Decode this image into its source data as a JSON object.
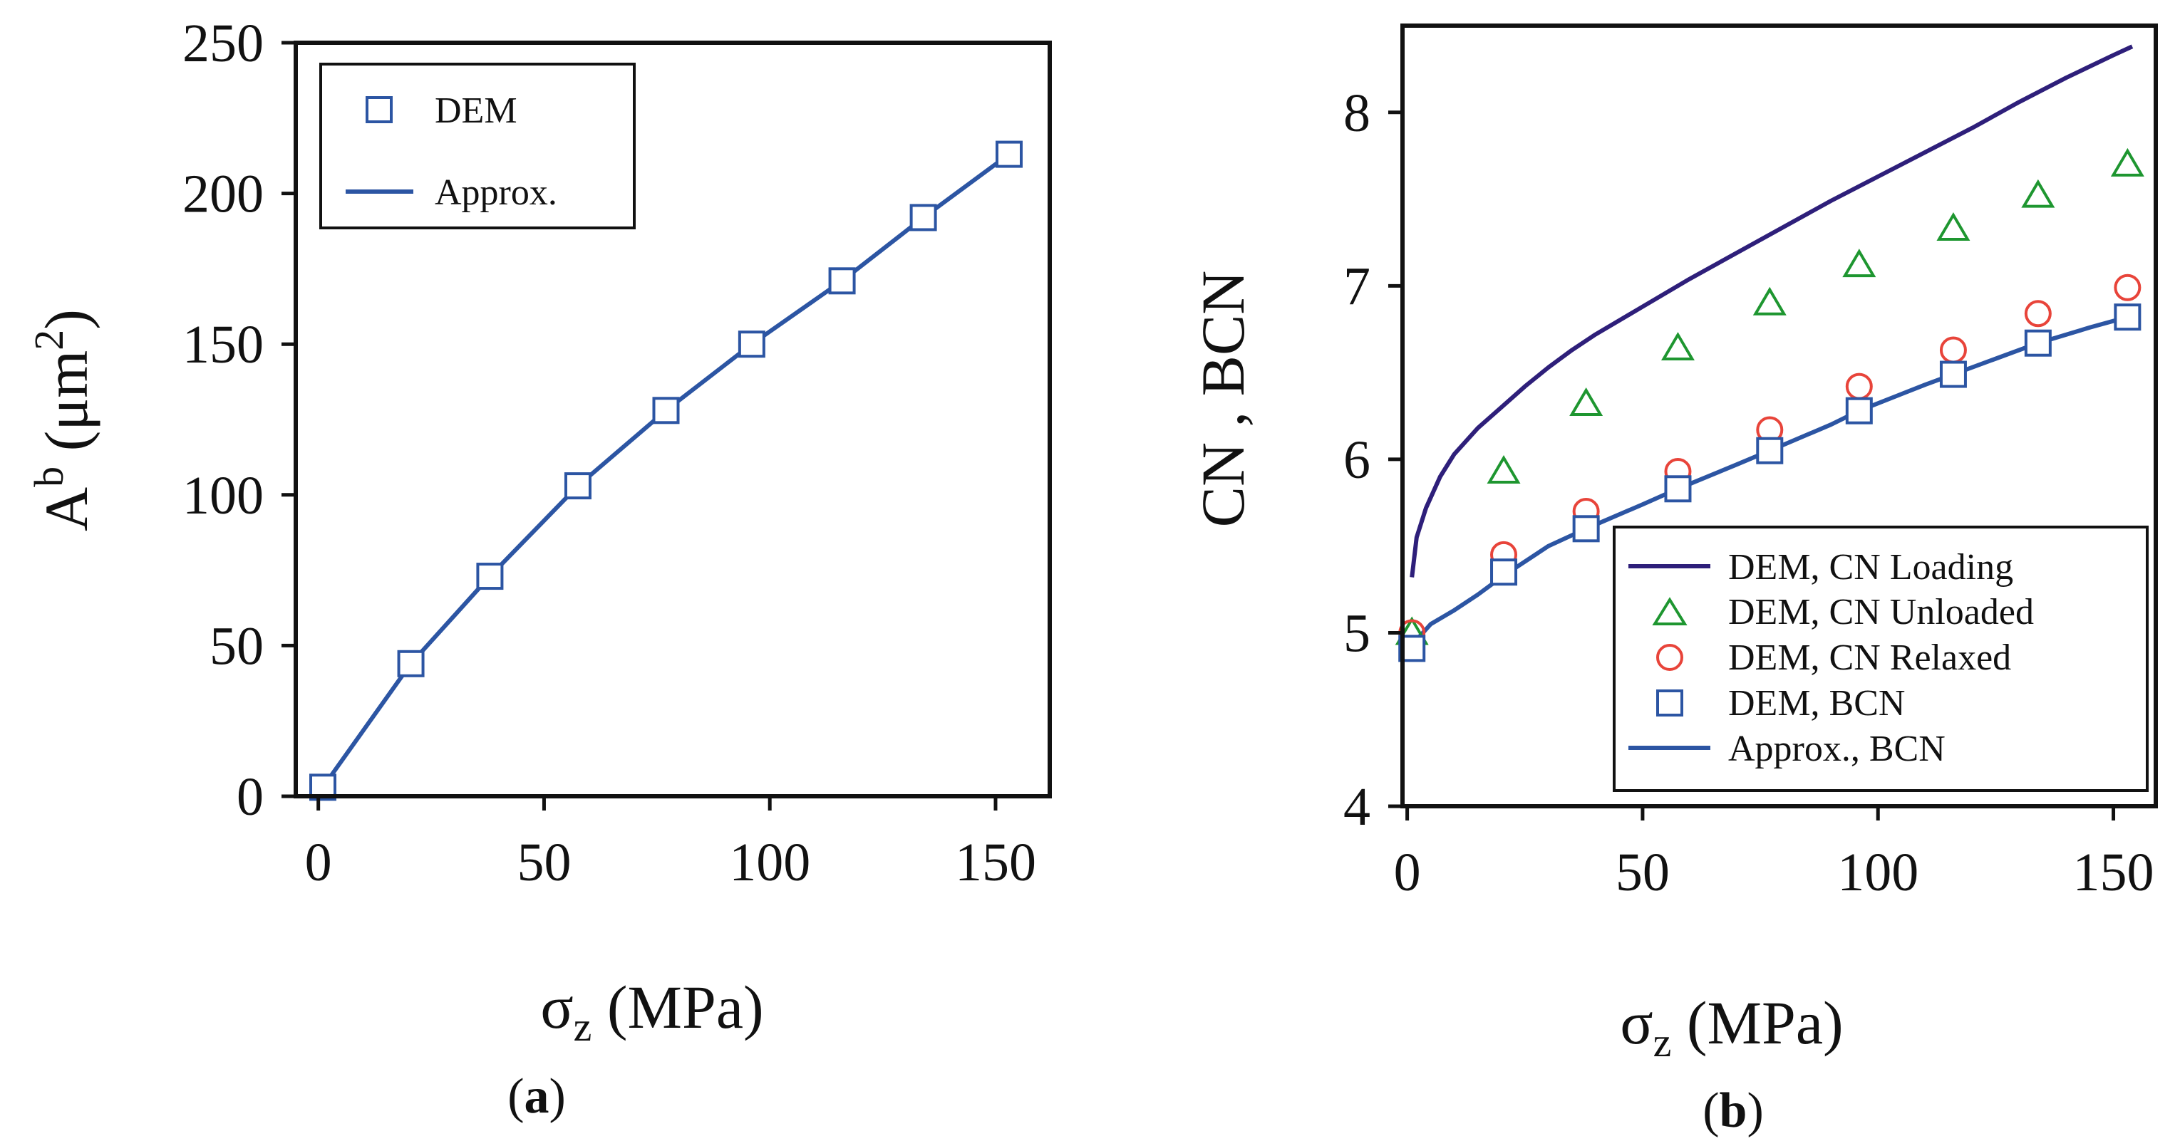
{
  "colors": {
    "blue": "#2c55a3",
    "purple": "#2e1f7a",
    "green": "#1e9630",
    "red": "#e8443a",
    "axis": "#111111"
  },
  "chart_data": [
    {
      "type": "line",
      "panel_label": {
        "open": "(",
        "letter": "a",
        "close": ")"
      },
      "xlabel": {
        "symbol": "σ",
        "sub": "z",
        "rest": " (MPa)"
      },
      "ylabel": {
        "main": "A",
        "sup": "b",
        "rest": "  (μm",
        "exp": "2",
        "close": ")"
      },
      "xlim": [
        -5,
        162
      ],
      "ylim": [
        0,
        250
      ],
      "xticks": [
        0,
        50,
        100,
        150
      ],
      "yticks": [
        0,
        50,
        100,
        150,
        200,
        250
      ],
      "legend_position": "top-left",
      "grid": false,
      "series": [
        {
          "name": "DEM",
          "style": "marker-square",
          "x": [
            1,
            20.5,
            38,
            57.5,
            77,
            96,
            116,
            134,
            153
          ],
          "y": [
            3,
            44,
            73,
            103,
            128,
            150,
            171,
            192,
            213
          ]
        },
        {
          "name": "Approx.",
          "style": "line",
          "x": [
            1,
            20.5,
            38,
            57.5,
            77,
            96,
            116,
            134,
            153
          ],
          "y": [
            3,
            44,
            73,
            103,
            128,
            150,
            171,
            192,
            213
          ]
        }
      ]
    },
    {
      "type": "line",
      "panel_label": {
        "open": "(",
        "letter": "b",
        "close": ")"
      },
      "xlabel": {
        "symbol": "σ",
        "sub": "z",
        "rest": " (MPa)"
      },
      "ylabel": {
        "main": "CN , BCN"
      },
      "xlim": [
        -1,
        159
      ],
      "ylim": [
        4,
        8.5
      ],
      "xticks": [
        0,
        50,
        100,
        150
      ],
      "yticks": [
        4,
        5,
        6,
        7,
        8
      ],
      "legend_position": "bottom-right",
      "grid": false,
      "series": [
        {
          "name": "DEM, CN Loading",
          "style": "line",
          "color_key": "purple",
          "x": [
            1,
            2,
            4,
            7,
            10,
            15,
            20,
            25,
            30,
            35,
            40,
            50,
            60,
            70,
            80,
            90,
            100,
            110,
            120,
            130,
            140,
            150,
            154
          ],
          "y": [
            5.32,
            5.55,
            5.72,
            5.9,
            6.03,
            6.18,
            6.3,
            6.42,
            6.53,
            6.63,
            6.72,
            6.88,
            7.04,
            7.19,
            7.34,
            7.49,
            7.63,
            7.77,
            7.91,
            8.06,
            8.2,
            8.33,
            8.38
          ]
        },
        {
          "name": "DEM, CN Unloaded",
          "style": "marker-triangle",
          "color_key": "green",
          "x": [
            1,
            20.5,
            38,
            57.5,
            77,
            96,
            116,
            134,
            153
          ],
          "y": [
            5.0,
            5.93,
            6.32,
            6.64,
            6.9,
            7.12,
            7.33,
            7.52,
            7.7
          ]
        },
        {
          "name": "DEM, CN Relaxed",
          "style": "marker-circle",
          "color_key": "red",
          "x": [
            1,
            20.5,
            38,
            57.5,
            77,
            96,
            116,
            134,
            153
          ],
          "y": [
            5.0,
            5.45,
            5.7,
            5.93,
            6.17,
            6.42,
            6.63,
            6.84,
            6.99
          ]
        },
        {
          "name": "DEM, BCN",
          "style": "marker-square",
          "color_key": "blue",
          "x": [
            1,
            20.5,
            38,
            57.5,
            77,
            96,
            116,
            134,
            153
          ],
          "y": [
            4.91,
            5.35,
            5.6,
            5.83,
            6.05,
            6.28,
            6.49,
            6.67,
            6.82
          ]
        },
        {
          "name": "Approx., BCN",
          "style": "line",
          "color_key": "blue",
          "x": [
            1,
            5,
            10,
            15,
            20.5,
            30,
            38,
            50,
            57.5,
            70,
            77,
            90,
            96,
            110,
            116,
            125,
            134,
            145,
            153
          ],
          "y": [
            4.93,
            5.05,
            5.13,
            5.22,
            5.33,
            5.5,
            5.6,
            5.74,
            5.83,
            5.97,
            6.05,
            6.2,
            6.28,
            6.43,
            6.49,
            6.58,
            6.67,
            6.76,
            6.82
          ]
        }
      ]
    }
  ]
}
